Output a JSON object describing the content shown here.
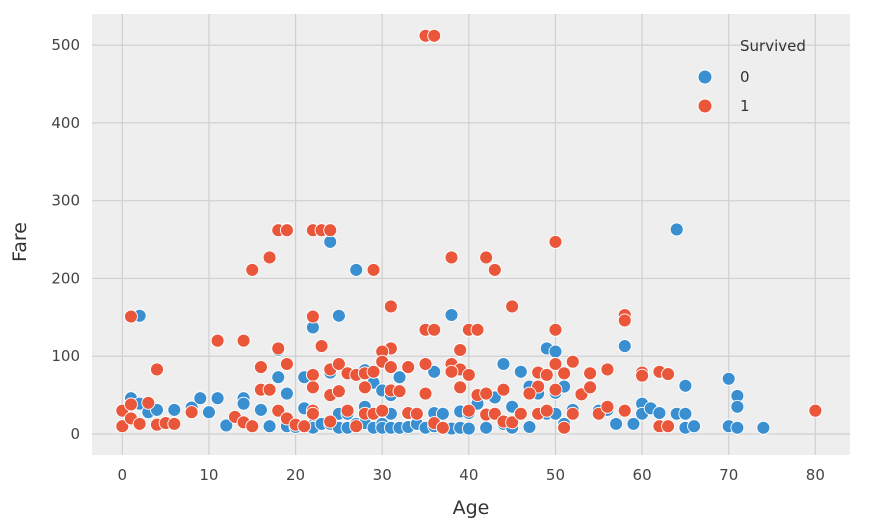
{
  "chart_data": {
    "type": "scatter",
    "xlabel": "Age",
    "ylabel": "Fare",
    "xlim": [
      -3.5,
      84
    ],
    "ylim": [
      -27,
      540
    ],
    "xticks": [
      "0",
      "10",
      "20",
      "30",
      "40",
      "50",
      "60",
      "70",
      "80"
    ],
    "yticks": [
      "0",
      "100",
      "200",
      "300",
      "400",
      "500"
    ],
    "grid": true,
    "legend": {
      "title": "Survived",
      "placement": "top-right",
      "entries": [
        "0",
        "1"
      ]
    },
    "colors": {
      "0": "#3a8fd1",
      "1": "#e9563a",
      "background": "#eeeeee",
      "grid": "#d0d0d0"
    },
    "series": [
      {
        "name": "0",
        "points": [
          [
            2,
            152
          ],
          [
            19,
            263
          ],
          [
            24,
            247
          ],
          [
            25,
            152
          ],
          [
            27,
            211
          ],
          [
            38,
            153
          ],
          [
            22,
            137
          ],
          [
            64,
            263
          ],
          [
            58,
            113
          ],
          [
            49,
            110
          ],
          [
            50,
            106
          ],
          [
            1,
            46
          ],
          [
            2,
            39
          ],
          [
            3,
            28
          ],
          [
            4,
            31
          ],
          [
            6,
            31
          ],
          [
            8,
            34
          ],
          [
            9,
            46
          ],
          [
            10,
            28
          ],
          [
            11,
            46
          ],
          [
            12,
            11
          ],
          [
            14,
            46
          ],
          [
            14,
            39
          ],
          [
            16,
            31
          ],
          [
            17,
            10
          ],
          [
            18,
            108
          ],
          [
            18,
            73
          ],
          [
            19,
            52
          ],
          [
            19,
            10
          ],
          [
            20,
            9
          ],
          [
            21,
            33
          ],
          [
            21,
            73
          ],
          [
            22,
            11
          ],
          [
            22,
            8
          ],
          [
            23,
            13
          ],
          [
            24,
            79
          ],
          [
            24,
            13
          ],
          [
            25,
            26
          ],
          [
            25,
            8
          ],
          [
            26,
            26
          ],
          [
            26,
            8
          ],
          [
            27,
            13
          ],
          [
            28,
            82
          ],
          [
            28,
            35
          ],
          [
            28,
            14
          ],
          [
            29,
            66
          ],
          [
            29,
            26
          ],
          [
            29,
            8
          ],
          [
            30,
            56
          ],
          [
            30,
            13
          ],
          [
            30,
            8
          ],
          [
            31,
            50
          ],
          [
            31,
            26
          ],
          [
            31,
            8
          ],
          [
            32,
            73
          ],
          [
            32,
            8
          ],
          [
            33,
            26
          ],
          [
            33,
            9
          ],
          [
            34,
            26
          ],
          [
            34,
            13
          ],
          [
            35,
            8
          ],
          [
            36,
            80
          ],
          [
            36,
            27
          ],
          [
            36,
            10
          ],
          [
            37,
            26
          ],
          [
            37,
            8
          ],
          [
            38,
            7
          ],
          [
            39,
            29
          ],
          [
            39,
            8
          ],
          [
            40,
            27
          ],
          [
            40,
            7
          ],
          [
            41,
            39
          ],
          [
            42,
            26
          ],
          [
            42,
            8
          ],
          [
            43,
            47
          ],
          [
            44,
            90
          ],
          [
            44,
            13
          ],
          [
            45,
            35
          ],
          [
            45,
            8
          ],
          [
            46,
            80
          ],
          [
            46,
            26
          ],
          [
            47,
            61
          ],
          [
            47,
            9
          ],
          [
            48,
            52
          ],
          [
            48,
            25
          ],
          [
            49,
            26
          ],
          [
            50,
            53
          ],
          [
            50,
            26
          ],
          [
            51,
            61
          ],
          [
            51,
            13
          ],
          [
            52,
            31
          ],
          [
            54,
            77
          ],
          [
            55,
            30
          ],
          [
            56,
            31
          ],
          [
            57,
            13
          ],
          [
            58,
            30
          ],
          [
            59,
            13
          ],
          [
            60,
            39
          ],
          [
            60,
            26
          ],
          [
            61,
            33
          ],
          [
            62,
            27
          ],
          [
            63,
            10
          ],
          [
            64,
            26
          ],
          [
            65,
            62
          ],
          [
            65,
            26
          ],
          [
            65,
            8
          ],
          [
            66,
            10
          ],
          [
            70,
            71
          ],
          [
            70,
            10
          ],
          [
            71,
            49
          ],
          [
            71,
            35
          ],
          [
            71,
            8
          ],
          [
            74,
            8
          ]
        ]
      },
      {
        "name": "1",
        "points": [
          [
            35,
            512
          ],
          [
            36,
            512
          ],
          [
            18,
            262
          ],
          [
            19,
            262
          ],
          [
            22,
            262
          ],
          [
            23,
            262
          ],
          [
            24,
            262
          ],
          [
            17,
            227
          ],
          [
            38,
            227
          ],
          [
            42,
            227
          ],
          [
            43,
            211
          ],
          [
            15,
            211
          ],
          [
            29,
            211
          ],
          [
            50,
            247
          ],
          [
            31,
            164
          ],
          [
            45,
            164
          ],
          [
            1,
            151
          ],
          [
            22,
            151
          ],
          [
            58,
            153
          ],
          [
            58,
            146
          ],
          [
            35,
            134
          ],
          [
            36,
            134
          ],
          [
            40,
            134
          ],
          [
            41,
            134
          ],
          [
            50,
            134
          ],
          [
            11,
            120
          ],
          [
            14,
            120
          ],
          [
            23,
            113
          ],
          [
            31,
            110
          ],
          [
            18,
            110
          ],
          [
            4,
            83
          ],
          [
            16,
            86
          ],
          [
            19,
            90
          ],
          [
            22,
            76
          ],
          [
            24,
            83
          ],
          [
            25,
            90
          ],
          [
            26,
            78
          ],
          [
            27,
            76
          ],
          [
            28,
            78
          ],
          [
            29,
            80
          ],
          [
            30,
            106
          ],
          [
            30,
            93
          ],
          [
            31,
            86
          ],
          [
            33,
            86
          ],
          [
            35,
            90
          ],
          [
            38,
            90
          ],
          [
            39,
            108
          ],
          [
            39,
            83
          ],
          [
            40,
            76
          ],
          [
            44,
            57
          ],
          [
            48,
            79
          ],
          [
            48,
            61
          ],
          [
            49,
            76
          ],
          [
            50,
            90
          ],
          [
            51,
            78
          ],
          [
            52,
            93
          ],
          [
            54,
            78
          ],
          [
            56,
            83
          ],
          [
            60,
            79
          ],
          [
            62,
            80
          ],
          [
            63,
            77
          ],
          [
            0,
            10
          ],
          [
            0,
            30
          ],
          [
            1,
            20
          ],
          [
            1,
            38
          ],
          [
            2,
            13
          ],
          [
            3,
            40
          ],
          [
            4,
            12
          ],
          [
            5,
            14
          ],
          [
            6,
            13
          ],
          [
            8,
            28
          ],
          [
            13,
            22
          ],
          [
            14,
            15
          ],
          [
            15,
            10
          ],
          [
            16,
            57
          ],
          [
            17,
            57
          ],
          [
            18,
            30
          ],
          [
            19,
            20
          ],
          [
            20,
            12
          ],
          [
            21,
            10
          ],
          [
            22,
            30
          ],
          [
            22,
            26
          ],
          [
            22,
            60
          ],
          [
            24,
            50
          ],
          [
            24,
            16
          ],
          [
            25,
            55
          ],
          [
            26,
            30
          ],
          [
            27,
            10
          ],
          [
            28,
            26
          ],
          [
            28,
            60
          ],
          [
            29,
            26
          ],
          [
            30,
            30
          ],
          [
            31,
            56
          ],
          [
            32,
            55
          ],
          [
            33,
            27
          ],
          [
            34,
            26
          ],
          [
            35,
            52
          ],
          [
            36,
            14
          ],
          [
            37,
            8
          ],
          [
            38,
            80
          ],
          [
            39,
            60
          ],
          [
            40,
            30
          ],
          [
            41,
            50
          ],
          [
            42,
            25
          ],
          [
            42,
            52
          ],
          [
            43,
            26
          ],
          [
            44,
            16
          ],
          [
            45,
            15
          ],
          [
            46,
            26
          ],
          [
            47,
            52
          ],
          [
            48,
            26
          ],
          [
            49,
            30
          ],
          [
            50,
            57
          ],
          [
            51,
            8
          ],
          [
            52,
            26
          ],
          [
            53,
            51
          ],
          [
            54,
            60
          ],
          [
            55,
            26
          ],
          [
            56,
            35
          ],
          [
            58,
            30
          ],
          [
            60,
            75
          ],
          [
            62,
            10
          ],
          [
            63,
            10
          ],
          [
            80,
            30
          ]
        ]
      }
    ]
  }
}
